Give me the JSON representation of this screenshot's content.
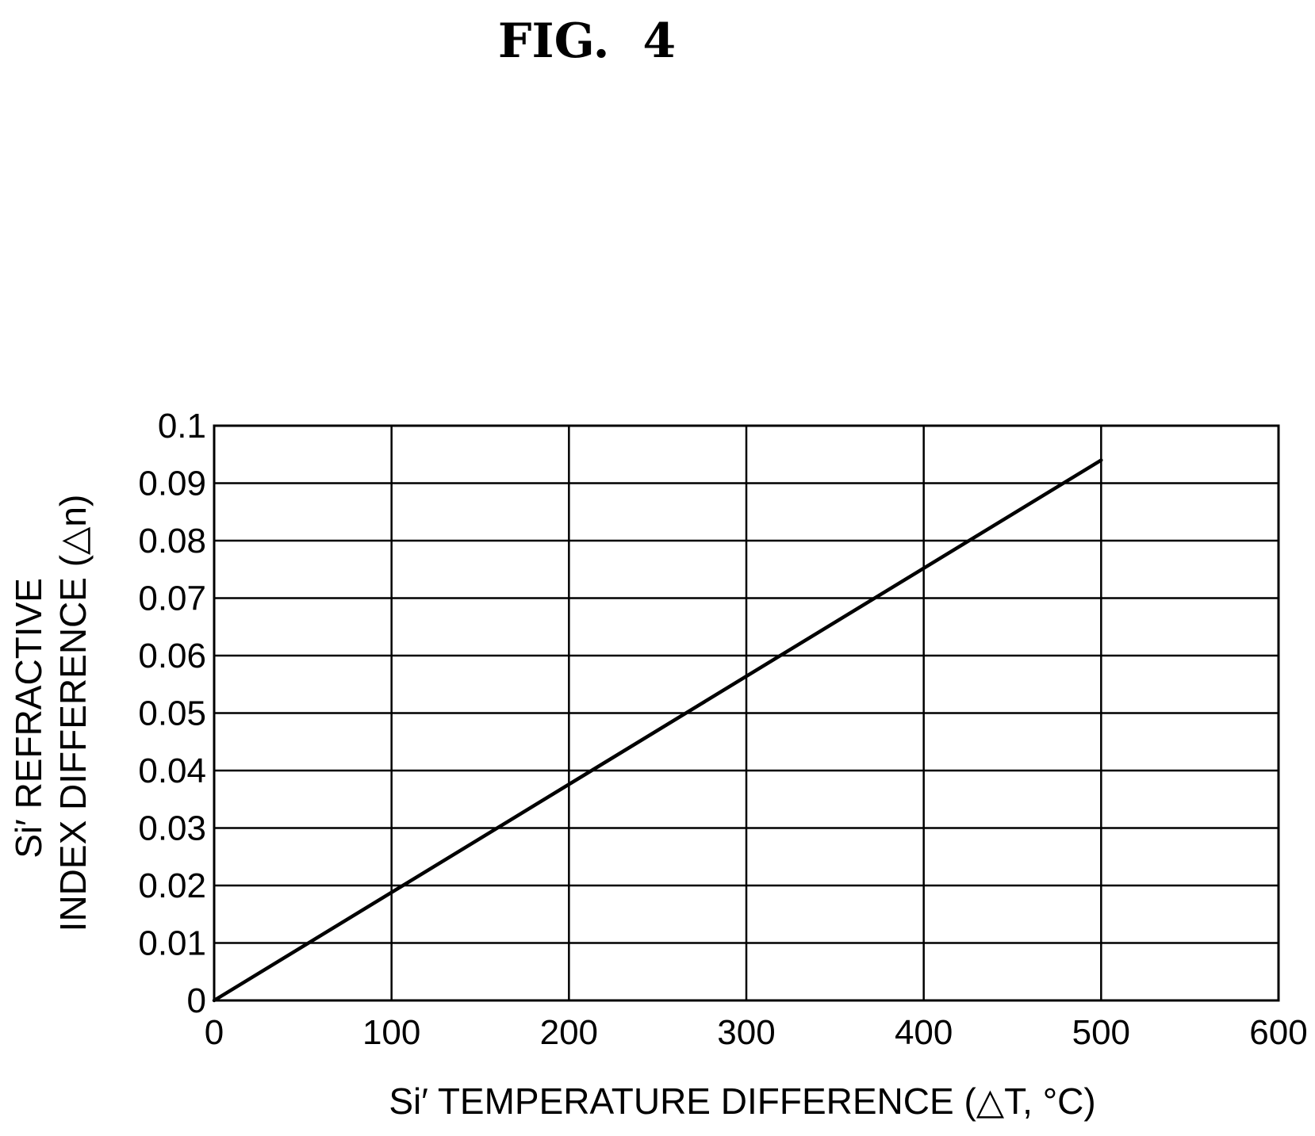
{
  "figure_label": "FIG.  4",
  "chart_data": {
    "type": "line",
    "xlabel": "Si′ TEMPERATURE DIFFERENCE (△T, °C)",
    "ylabel_lines": [
      "Si′ REFRACTIVE",
      "INDEX DIFFERENCE (△n)"
    ],
    "xlim": [
      0,
      600
    ],
    "ylim": [
      0,
      0.1
    ],
    "x_ticks": [
      0,
      100,
      200,
      300,
      400,
      500,
      600
    ],
    "x_tick_labels": [
      "0",
      "100",
      "200",
      "300",
      "400",
      "500",
      "600"
    ],
    "y_ticks": [
      0,
      0.01,
      0.02,
      0.03,
      0.04,
      0.05,
      0.06,
      0.07,
      0.08,
      0.09,
      0.1
    ],
    "y_tick_labels": [
      "0",
      "0.01",
      "0.02",
      "0.03",
      "0.04",
      "0.05",
      "0.06",
      "0.07",
      "0.08",
      "0.09",
      "0.1"
    ],
    "grid": true,
    "series": [
      {
        "x": [
          0,
          500
        ],
        "y": [
          0,
          0.094
        ]
      }
    ]
  }
}
